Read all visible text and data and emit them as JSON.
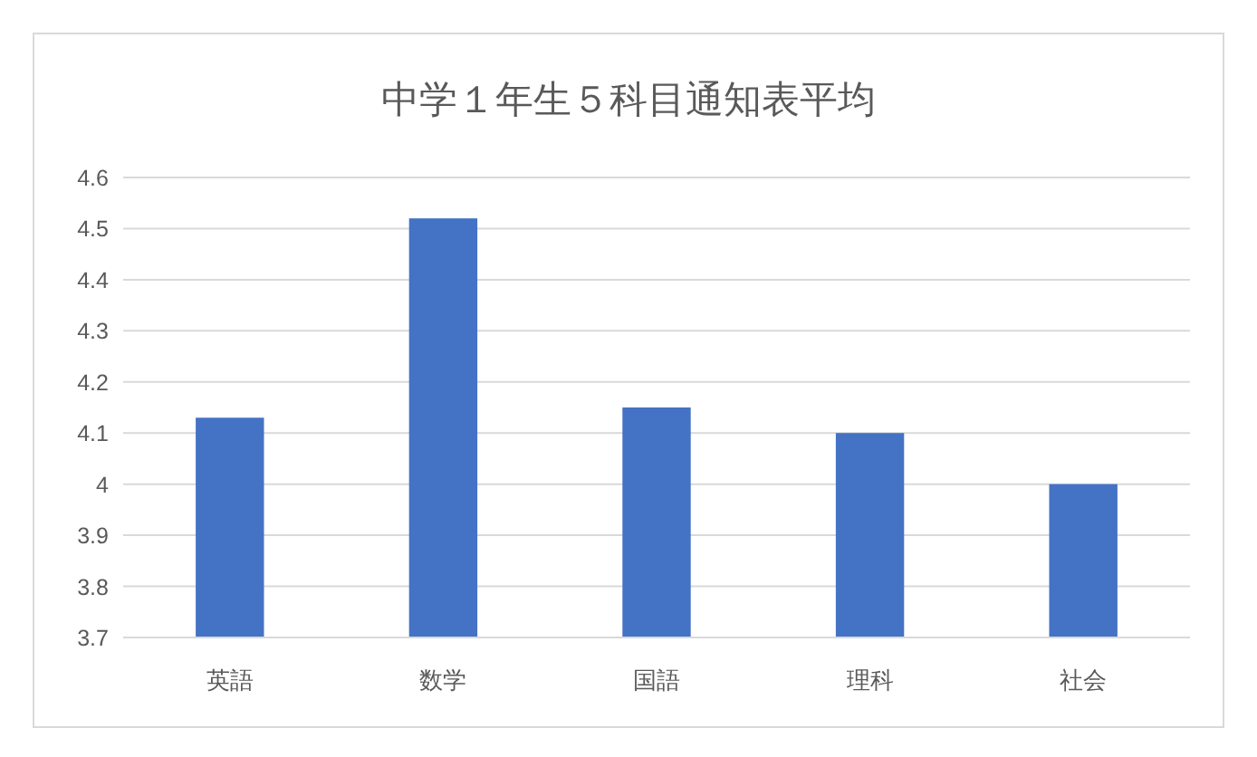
{
  "chart_data": {
    "type": "bar",
    "title": "中学１年生５科目通知表平均",
    "categories": [
      "英語",
      "数学",
      "国語",
      "理科",
      "社会"
    ],
    "values": [
      4.13,
      4.52,
      4.15,
      4.1,
      4.0
    ],
    "color": "#4472c4",
    "ylim": [
      3.7,
      4.6
    ],
    "yticks": [
      3.7,
      3.8,
      3.9,
      4,
      4.1,
      4.2,
      4.3,
      4.4,
      4.5,
      4.6
    ],
    "grid": "y"
  }
}
